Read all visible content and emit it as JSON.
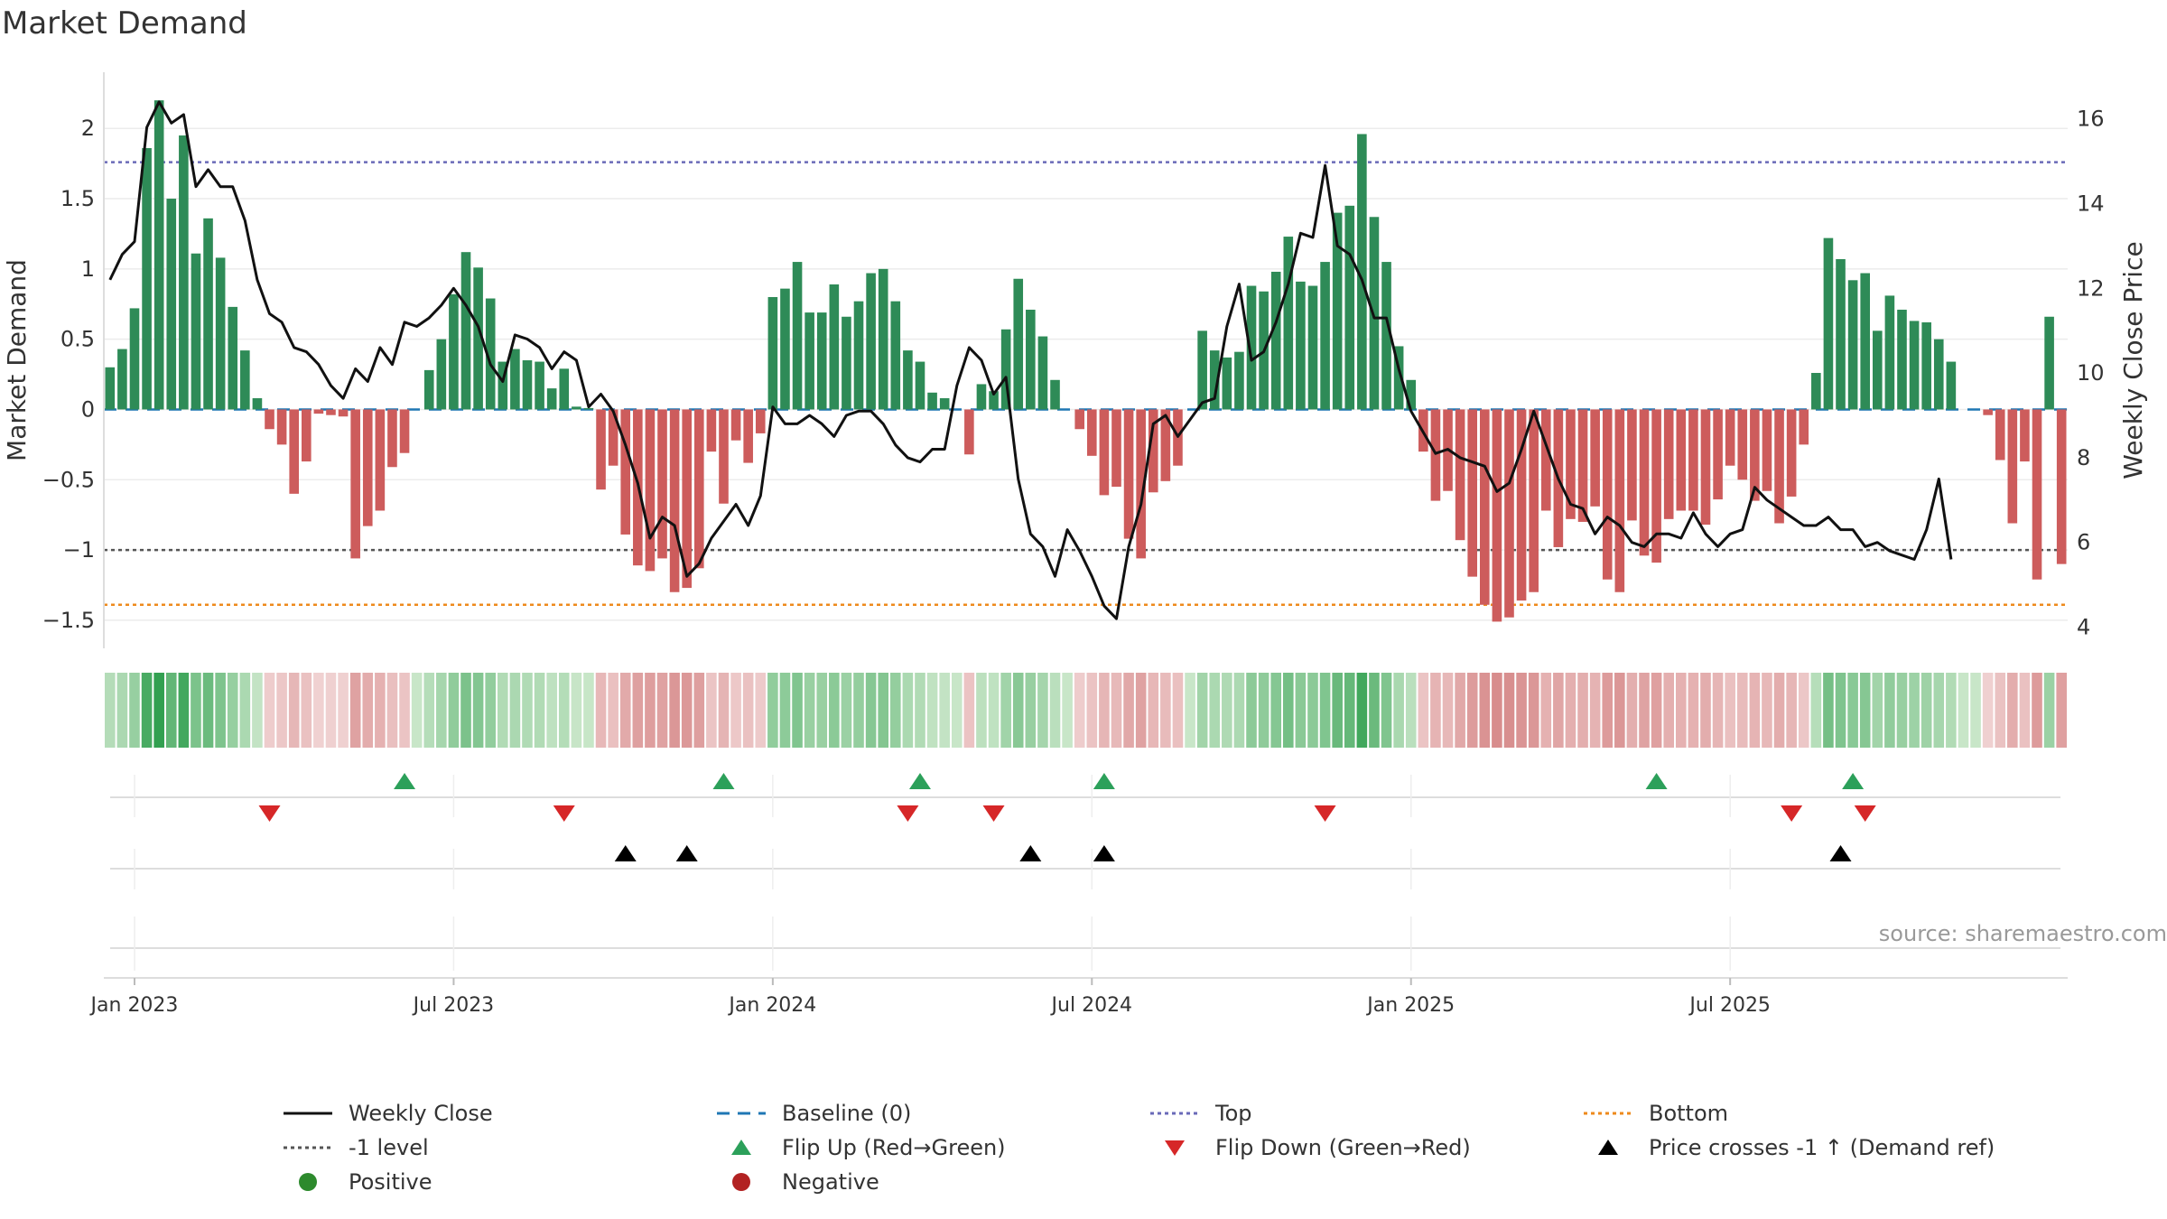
{
  "title": "Market Demand",
  "source": "source: sharemaestro.com",
  "chart_data": {
    "type": "bar+line",
    "title": "Market Demand",
    "ylabel_left": "Market Demand",
    "ylabel_right": "Weekly Close Price",
    "ylim_left": [
      -1.7,
      2.4
    ],
    "ylim_right": [
      3.5,
      17.1
    ],
    "yticks_left": [
      {
        "value": 2,
        "label": "2"
      },
      {
        "value": 1.5,
        "label": "1.5"
      },
      {
        "value": 1,
        "label": "1"
      },
      {
        "value": 0.5,
        "label": "0.5"
      },
      {
        "value": 0,
        "label": "0"
      },
      {
        "value": -0.5,
        "label": "−0.5"
      },
      {
        "value": -1,
        "label": "−1"
      },
      {
        "value": -1.5,
        "label": "−1.5"
      }
    ],
    "yticks_right": [
      {
        "value": 16,
        "label": "16"
      },
      {
        "value": 14,
        "label": "14"
      },
      {
        "value": 12,
        "label": "12"
      },
      {
        "value": 10,
        "label": "10"
      },
      {
        "value": 8,
        "label": "8"
      },
      {
        "value": 6,
        "label": "6"
      },
      {
        "value": 4,
        "label": "4"
      }
    ],
    "xticks": [
      {
        "index": 2,
        "label": "Jan 2023"
      },
      {
        "index": 28,
        "label": "Jul 2023"
      },
      {
        "index": 54,
        "label": "Jan 2024"
      },
      {
        "index": 80,
        "label": "Jul 2024"
      },
      {
        "index": 106,
        "label": "Jan 2025"
      },
      {
        "index": 132,
        "label": "Jul 2025"
      }
    ],
    "reference_lines": {
      "top": 1.76,
      "minus_one": -1,
      "bottom": -1.39,
      "baseline": 0
    },
    "demand": [
      0.3,
      0.43,
      0.72,
      1.86,
      2.2,
      1.5,
      1.95,
      1.11,
      1.36,
      1.08,
      0.73,
      0.42,
      0.08,
      -0.14,
      -0.25,
      -0.6,
      -0.37,
      -0.03,
      -0.04,
      -0.05,
      -1.06,
      -0.83,
      -0.72,
      -0.41,
      -0.31,
      0.0,
      0.28,
      0.5,
      0.82,
      1.12,
      1.01,
      0.79,
      0.34,
      0.43,
      0.35,
      0.34,
      0.15,
      0.29,
      0.02,
      0.01,
      -0.57,
      -0.4,
      -0.89,
      -1.11,
      -1.15,
      -1.06,
      -1.3,
      -1.27,
      -1.13,
      -0.3,
      -0.67,
      -0.22,
      -0.38,
      -0.17,
      0.8,
      0.86,
      1.05,
      0.69,
      0.69,
      0.89,
      0.66,
      0.77,
      0.97,
      1.0,
      0.77,
      0.42,
      0.34,
      0.12,
      0.08,
      0.0,
      -0.32,
      0.18,
      0.13,
      0.57,
      0.93,
      0.71,
      0.52,
      0.21,
      0.0,
      -0.14,
      -0.33,
      -0.61,
      -0.55,
      -0.92,
      -1.06,
      -0.59,
      -0.51,
      -0.4,
      0.0,
      0.56,
      0.42,
      0.37,
      0.41,
      0.88,
      0.84,
      0.98,
      1.23,
      0.91,
      0.88,
      1.05,
      1.4,
      1.45,
      1.96,
      1.37,
      1.05,
      0.45,
      0.21,
      -0.3,
      -0.65,
      -0.58,
      -0.93,
      -1.19,
      -1.39,
      -1.51,
      -1.48,
      -1.36,
      -1.3,
      -0.72,
      -0.98,
      -0.78,
      -0.8,
      -0.69,
      -1.21,
      -1.3,
      -0.79,
      -1.04,
      -1.09,
      -0.78,
      -0.72,
      -0.72,
      -0.82,
      -0.64,
      -0.4,
      -0.5,
      -0.65,
      -0.58,
      -0.81,
      -0.62,
      -0.25,
      0.26,
      1.22,
      1.07,
      0.92,
      0.97,
      0.56,
      0.81,
      0.71,
      0.63,
      0.62,
      0.5,
      0.34,
      0.0,
      0.0,
      -0.04,
      -0.36,
      -0.81,
      -0.37,
      -1.21,
      0.66,
      -1.1
    ],
    "weekly_close": [
      12.2,
      12.8,
      13.1,
      15.8,
      16.4,
      15.9,
      16.1,
      14.4,
      14.8,
      14.4,
      14.4,
      13.6,
      12.2,
      11.4,
      11.2,
      10.6,
      10.5,
      10.2,
      9.7,
      9.4,
      10.1,
      9.8,
      10.6,
      10.2,
      11.2,
      11.1,
      11.3,
      11.6,
      12.0,
      11.6,
      11.1,
      10.2,
      9.8,
      10.9,
      10.8,
      10.6,
      10.1,
      10.5,
      10.3,
      9.2,
      9.5,
      9.1,
      8.3,
      7.4,
      6.1,
      6.6,
      6.4,
      5.2,
      5.5,
      6.1,
      6.5,
      6.9,
      6.4,
      7.1,
      9.2,
      8.8,
      8.8,
      9.0,
      8.8,
      8.5,
      9.0,
      9.1,
      9.1,
      8.8,
      8.3,
      8.0,
      7.9,
      8.2,
      8.2,
      9.7,
      10.6,
      10.3,
      9.5,
      9.9,
      7.5,
      6.2,
      5.9,
      5.2,
      6.3,
      5.8,
      5.2,
      4.5,
      4.2,
      5.9,
      6.9,
      8.8,
      9.0,
      8.5,
      8.9,
      9.3,
      9.4,
      11.1,
      12.1,
      10.3,
      10.5,
      11.2,
      12.1,
      13.3,
      13.2,
      14.9,
      13.0,
      12.8,
      12.2,
      11.3,
      11.3,
      10.1,
      9.1,
      8.6,
      8.1,
      8.2,
      8.0,
      7.9,
      7.8,
      7.2,
      7.4,
      8.2,
      9.1,
      8.3,
      7.5,
      6.9,
      6.8,
      6.2,
      6.6,
      6.4,
      6.0,
      5.9,
      6.2,
      6.2,
      6.1,
      6.7,
      6.2,
      5.9,
      6.2,
      6.3,
      7.3,
      7.0,
      6.8,
      6.6,
      6.4,
      6.4,
      6.6,
      6.3,
      6.3,
      5.9,
      6.0,
      5.8,
      5.7,
      5.6,
      6.3,
      7.5,
      5.6
    ],
    "markers": {
      "flip_up": [
        24,
        50,
        66,
        81,
        126,
        142
      ],
      "flip_down": [
        13,
        37,
        65,
        72,
        99,
        137,
        143
      ],
      "price_cross": [
        42,
        47,
        75,
        81,
        141
      ]
    },
    "heatmap": {
      "type": "heatmap",
      "description_values": "strip colour follows demand sign and magnitude"
    }
  },
  "colors": {
    "positive_bar": "#2e8b57",
    "negative_bar": "#cd5c5c",
    "close_line": "#111111",
    "baseline": "#1f77b4",
    "top_line": "#6a6ab8",
    "minus_one_line": "#555555",
    "bottom_line": "#ee8a1c",
    "flip_up": "#2ca05a",
    "flip_down": "#d62728",
    "price_cross": "#000000",
    "positive_dot": "#2d8a2d",
    "negative_dot": "#b22222"
  },
  "legend": [
    {
      "label": "Weekly Close",
      "symbol": "line-solid-black"
    },
    {
      "label": "Baseline (0)",
      "symbol": "line-dash-blue"
    },
    {
      "label": "Top",
      "symbol": "line-dot-purple"
    },
    {
      "label": "Bottom",
      "symbol": "line-dot-orange"
    },
    {
      "label": "-1 level",
      "symbol": "line-dot-gray"
    },
    {
      "label": "Flip Up (Red→Green)",
      "symbol": "triangle-up-green"
    },
    {
      "label": "Flip Down (Green→Red)",
      "symbol": "triangle-down-red"
    },
    {
      "label": "Price crosses -1 ↑ (Demand ref)",
      "symbol": "triangle-up-black"
    },
    {
      "label": "Positive",
      "symbol": "dot-green"
    },
    {
      "label": "Negative",
      "symbol": "dot-red"
    }
  ]
}
